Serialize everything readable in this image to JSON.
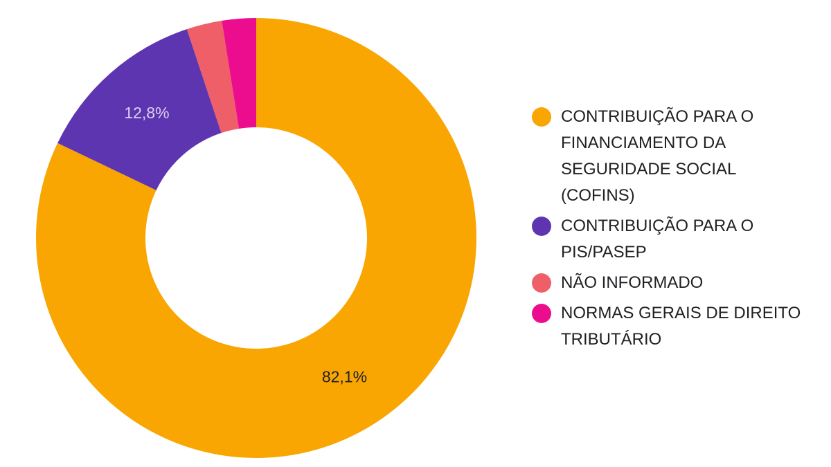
{
  "chart_data": {
    "type": "pie",
    "title": "",
    "donut": true,
    "legend_position": "right",
    "categories": [
      "CONTRIBUIÇÃO PARA O FINANCIAMENTO DA SEGURIDADE SOCIAL (COFINS)",
      "CONTRIBUIÇÃO PARA O PIS/PASEP",
      "NÃO INFORMADO",
      "NORMAS GERAIS DE DIREITO TRIBUTÁRIO"
    ],
    "values": [
      82.1,
      12.8,
      2.6,
      2.5
    ],
    "labels": [
      "82,1%",
      "12,8%",
      "",
      ""
    ],
    "label_colors": [
      "#202124",
      "#d9d2ec",
      "#ffffff",
      "#ffffff"
    ],
    "colors": [
      "#f9a602",
      "#5e35b1",
      "#ef5f67",
      "#ec0d8e"
    ]
  }
}
